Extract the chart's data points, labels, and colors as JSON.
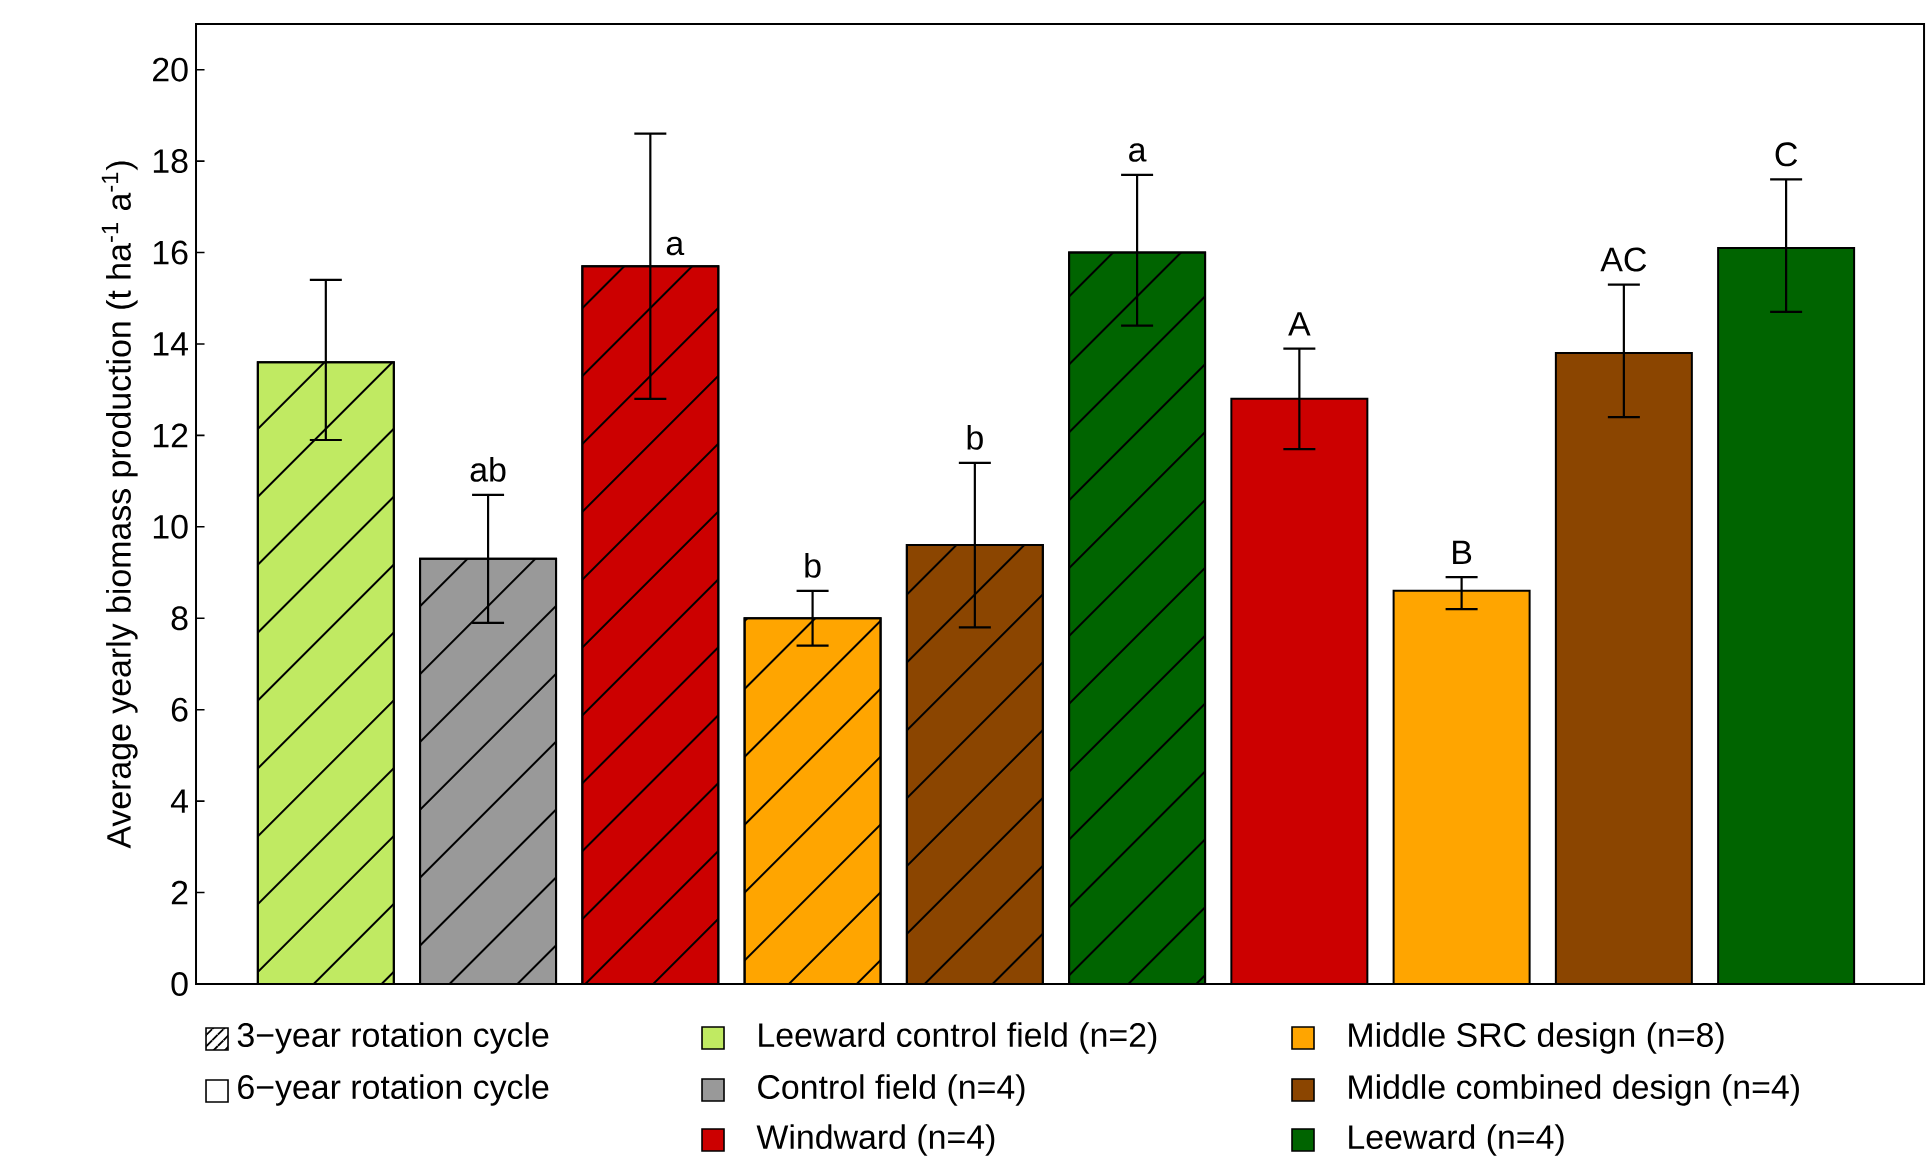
{
  "chart_data": {
    "type": "bar",
    "ylabel": "Average yearly biomass production    (t ha$^{-1}$ a$^{-1}$)",
    "categories": [
      null,
      null,
      null,
      null,
      null,
      null,
      null,
      null,
      null,
      null
    ],
    "series": [
      {
        "name": "3−year rotation cycle",
        "values": [
          13.6,
          9.3,
          15.7,
          8.0,
          9.6,
          16.0,
          null,
          null,
          null,
          null
        ],
        "colors": [
          "#c0ea62",
          "#999999",
          "#cc0000",
          "#ffa500",
          "#8b4500",
          "#006400",
          null,
          null,
          null,
          null
        ],
        "errors": [
          [
            11.9,
            15.4
          ],
          [
            7.9,
            10.7
          ],
          [
            12.8,
            18.6
          ],
          [
            7.4,
            8.6
          ],
          [
            7.8,
            11.4
          ],
          [
            14.4,
            17.7
          ],
          null,
          null,
          null,
          null
        ],
        "value_labels": [
          null,
          "ab",
          "a",
          "b",
          "b",
          "a",
          null,
          null,
          null,
          null
        ]
      },
      {
        "name": "6−year rotation cycle",
        "values": [
          null,
          null,
          null,
          null,
          null,
          null,
          12.8,
          8.6,
          13.8,
          16.1
        ],
        "colors": [
          null,
          null,
          null,
          null,
          null,
          null,
          "#cc0000",
          "#ffa500",
          "#8b4500",
          "#006400"
        ],
        "errors": [
          null,
          null,
          null,
          null,
          null,
          null,
          [
            11.7,
            13.9
          ],
          [
            8.2,
            8.9
          ],
          [
            12.4,
            15.3
          ],
          [
            14.7,
            17.6
          ]
        ],
        "value_labels": [
          null,
          null,
          null,
          null,
          null,
          null,
          "A",
          "B",
          "AC",
          "C"
        ]
      }
    ],
    "annotations": [
      "Leeward control field (n=2)",
      "Control field (n=4)",
      "Windward (n=4)",
      "Middle SRC design (n=8)",
      "Middle combined design (n=4)",
      "Leeward (n=4)"
    ],
    "ylim": [
      0,
      21
    ],
    "yticks": [
      0,
      2,
      4,
      6,
      8,
      10,
      12,
      14,
      16,
      18,
      20
    ],
    "stacked": true,
    "grid": false,
    "legend": "bottom"
  }
}
